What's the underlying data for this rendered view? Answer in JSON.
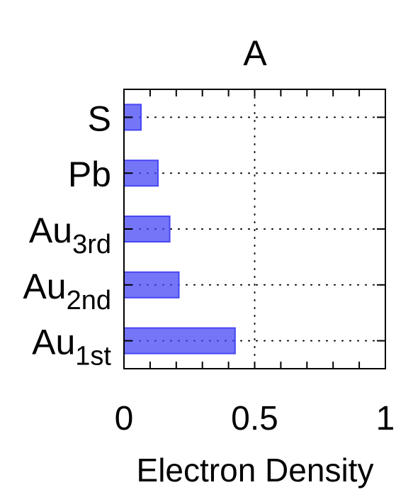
{
  "chart_data": {
    "type": "bar",
    "orientation": "horizontal",
    "title": "A",
    "title_color": "#0000ff",
    "xlabel": "Electron Density",
    "ylabel": "",
    "xlim": [
      0,
      1
    ],
    "x_ticks": [
      0,
      0.5,
      1
    ],
    "x_tick_labels": [
      "0",
      "0.5",
      "1"
    ],
    "grid": "dotted",
    "categories": [
      {
        "base": "S",
        "sub": ""
      },
      {
        "base": "Pb",
        "sub": ""
      },
      {
        "base": "Au",
        "sub": "3rd"
      },
      {
        "base": "Au",
        "sub": "2nd"
      },
      {
        "base": "Au",
        "sub": "1st"
      }
    ],
    "values": [
      0.065,
      0.13,
      0.175,
      0.21,
      0.425
    ],
    "bar_color": "#4747f5"
  }
}
